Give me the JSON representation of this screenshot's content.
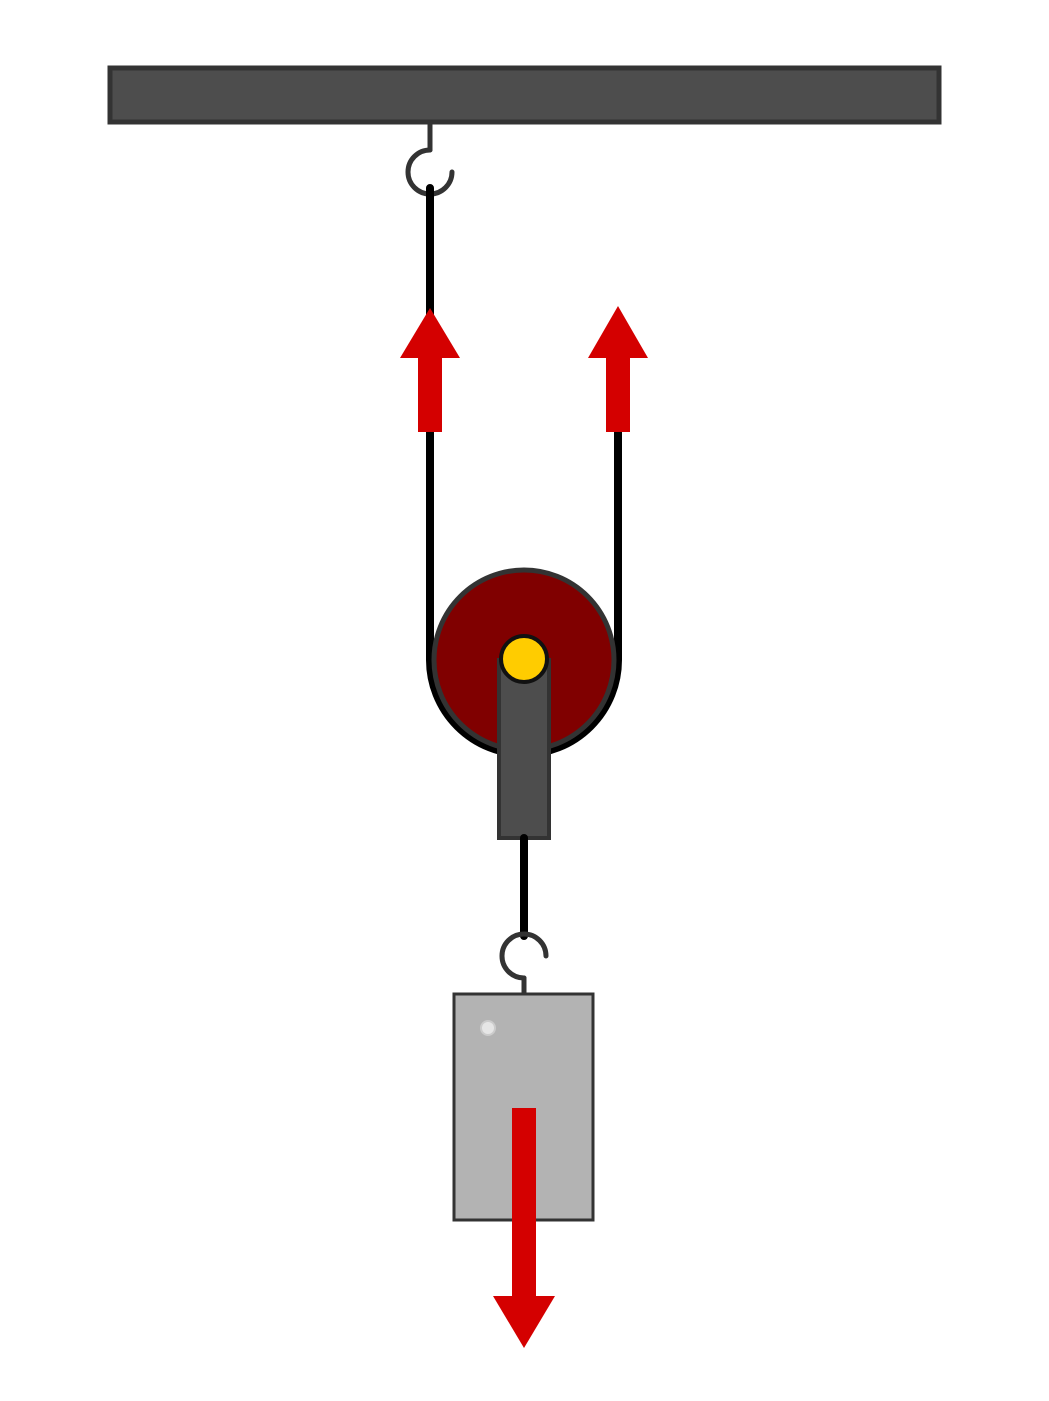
{
  "diagram": {
    "type": "movable-pulley-free-body",
    "components": {
      "ceiling_beam": {
        "label": "",
        "color": "#4d4d4d",
        "outline": "#333333"
      },
      "ceiling_hook": {
        "label": "",
        "color": "#333333"
      },
      "pulley_wheel": {
        "label": "",
        "color": "#800000",
        "outline": "#333333"
      },
      "pulley_axle": {
        "label": "",
        "color": "#ffcc00",
        "outline": "#111111"
      },
      "pulley_bracket": {
        "label": "",
        "color": "#4d4d4d",
        "outline": "#333333"
      },
      "rope": {
        "label": "",
        "color": "#000000"
      },
      "load_hook": {
        "label": "",
        "color": "#333333"
      },
      "load_block": {
        "label": "",
        "color": "#b3b3b3",
        "outline": "#333333"
      }
    },
    "forces": [
      {
        "name": "tension-left",
        "direction": "up",
        "label": "",
        "color": "#d40000"
      },
      {
        "name": "tension-right",
        "direction": "up",
        "label": "",
        "color": "#d40000"
      },
      {
        "name": "weight",
        "direction": "down",
        "label": "",
        "color": "#d40000"
      }
    ]
  }
}
